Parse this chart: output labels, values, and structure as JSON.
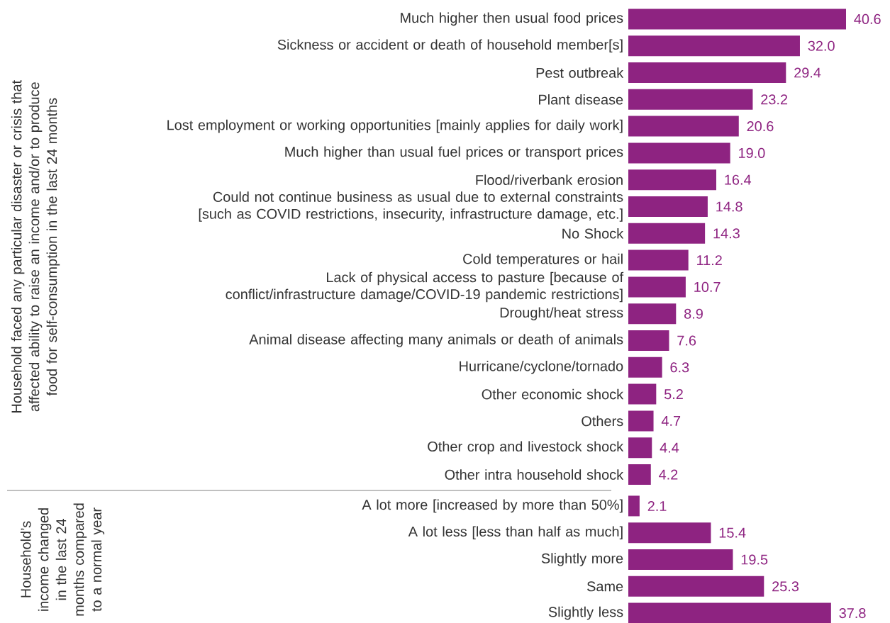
{
  "chart_data": [
    {
      "type": "bar",
      "orientation": "horizontal",
      "tick_labels": "y",
      "color": "#8e2381",
      "ylabel": "Household faced any particular disaster or crisis that affected ability to raise an income and/or to produce food for self-consumption in the last 24 months",
      "categories": [
        "Much higher then usual food prices",
        "Sickness or accident or death of household member[s]",
        "Pest outbreak",
        "Plant disease",
        "Lost employment or working opportunities [mainly applies for daily work]",
        "Much higher than usual fuel prices or transport prices",
        "Flood/riverbank erosion",
        "Could not continue business as usual due to external constraints [such as COVID restrictions, insecurity, infrastructure damage, etc.]",
        "No Shock",
        "Cold temperatures or hail",
        "Lack of physical access to pasture [because of conflict/infrastructure damage/COVID-19 pandemic restrictions]",
        "Drought/heat stress",
        "Animal disease affecting many animals or death of animals",
        "Hurricane/cyclone/tornado",
        "Other economic shock",
        "Others",
        "Other crop and livestock shock",
        "Other intra household shock"
      ],
      "values": [
        40.6,
        32.0,
        29.4,
        23.2,
        20.6,
        19.0,
        16.4,
        14.8,
        14.3,
        11.2,
        10.7,
        8.9,
        7.6,
        6.3,
        5.2,
        4.7,
        4.4,
        4.2
      ],
      "value_labels": [
        "40.6",
        "32.0",
        "29.4",
        "23.2",
        "20.6",
        "19.0",
        "16.4",
        "14.8",
        "14.3",
        "11.2",
        "10.7",
        "8.9",
        "7.6",
        "6.3",
        "5.2",
        "4.7",
        "4.4",
        "4.2"
      ]
    },
    {
      "type": "bar",
      "orientation": "horizontal",
      "tick_labels": "y",
      "color": "#8e2381",
      "ylabel": "Household’s income changed in the last 24 months compared to a normal year",
      "categories": [
        "A lot more [increased by more than 50%]",
        "A lot less [less than half as much]",
        "Slightly more",
        "Same",
        "Slightly less"
      ],
      "values": [
        2.1,
        15.4,
        19.5,
        25.3,
        37.8
      ],
      "value_labels": [
        "2.1",
        "15.4",
        "19.5",
        "25.3",
        "37.8"
      ]
    }
  ]
}
